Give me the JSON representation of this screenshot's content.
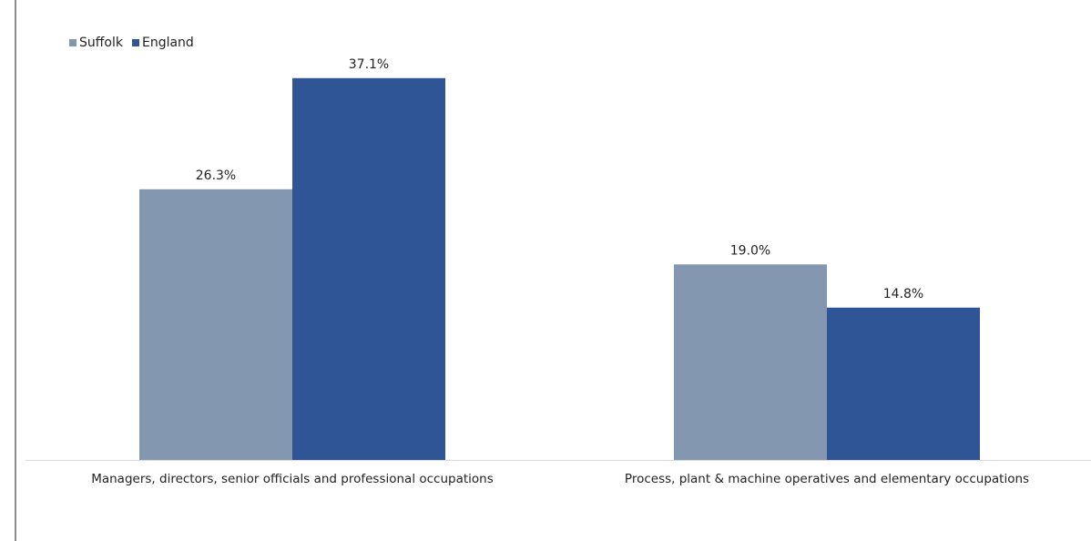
{
  "chart_data": {
    "type": "bar",
    "title": "",
    "xlabel": "",
    "ylabel": "",
    "categories": [
      "Managers, directors, senior officials and professional occupations",
      "Process, plant & machine operatives and elementary occupations"
    ],
    "series": [
      {
        "name": "Suffolk",
        "values": [
          26.3,
          19.0
        ],
        "labels": [
          "26.3%",
          "19.0%"
        ],
        "color": "#8497b0"
      },
      {
        "name": "England",
        "values": [
          37.1,
          14.8
        ],
        "labels": [
          "37.1%",
          "14.8%"
        ],
        "color": "#2f5597"
      }
    ],
    "ylim": [
      0,
      40
    ],
    "grid": false,
    "legend_position": "top-left",
    "axis_color": "#d9d9d9"
  }
}
